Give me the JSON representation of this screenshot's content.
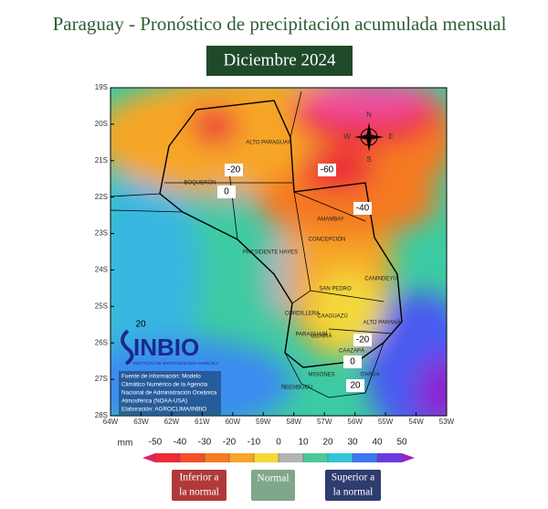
{
  "header": {
    "title": "Paraguay - Pronóstico de precipitación acumulada mensual",
    "subtitle": "Diciembre 2024"
  },
  "map": {
    "lat_labels": [
      "19S",
      "20S",
      "21S",
      "22S",
      "23S",
      "24S",
      "25S",
      "26S",
      "27S",
      "28S"
    ],
    "lon_labels": [
      "64W",
      "63W",
      "62W",
      "61W",
      "60W",
      "59W",
      "58W",
      "57W",
      "56W",
      "55W",
      "54W",
      "53W"
    ],
    "regions": [
      "ALTO PARAGUAY",
      "BOQUERÓN",
      "PRESIDENTE HAYES",
      "CONCEPCIÓN",
      "AMAMBAY",
      "CANINDEYÚ",
      "SAN PEDRO",
      "CORDILLERA",
      "CAAGUAZÚ",
      "ALTO PARANÁ",
      "GUAIRÁ",
      "CAAZAPÁ",
      "PARAGUARÍ",
      "MISIONES",
      "ITAPÚA",
      "ÑEEMBUCÚ"
    ],
    "contour_labels": [
      -20,
      0,
      -60,
      -40,
      -20,
      0,
      20,
      20
    ],
    "compass": [
      "N",
      "S",
      "E",
      "W"
    ],
    "logo": "INBIO",
    "logo_sub": "INSTITUTO DE BIOTECNOLOGÍA AGRÍCOLA",
    "source": [
      "Fuente de información: Modelo",
      "Climático Numérico de la Agencia",
      "Nacional de Administración Oceánica",
      "Atmosférica (NOAA-USA)",
      "Elaboración: AGROCLIMA/INBIO"
    ]
  },
  "colorbar": {
    "unit": "mm",
    "ticks": [
      -50,
      -40,
      -30,
      -20,
      -10,
      0,
      10,
      20,
      30,
      40,
      50
    ],
    "colors": [
      "#e0206a",
      "#ec2a38",
      "#f2502a",
      "#f57a22",
      "#f6a628",
      "#f2d83a",
      "#b4b4b4",
      "#4cc79a",
      "#34c4d6",
      "#3a78f0",
      "#6a3ae0",
      "#9a22c8"
    ]
  },
  "legend": [
    {
      "lines": [
        "Inferior a",
        "la normal"
      ]
    },
    {
      "lines": [
        "Normal"
      ]
    },
    {
      "lines": [
        "Superior a",
        "la normal"
      ]
    }
  ]
}
